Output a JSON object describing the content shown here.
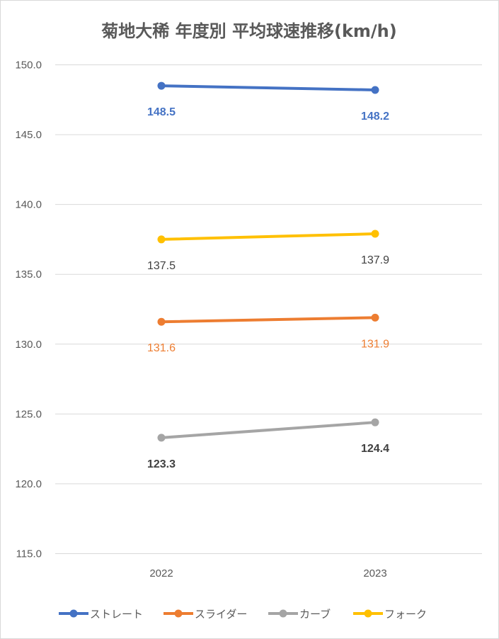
{
  "chart_data": {
    "type": "line",
    "title": "菊地大稀 年度別 平均球速推移(km/h)",
    "categories": [
      "2022",
      "2023"
    ],
    "ylim": [
      115.0,
      150.0
    ],
    "yticks": [
      "150.0",
      "145.0",
      "140.0",
      "135.0",
      "130.0",
      "125.0",
      "120.0",
      "115.0"
    ],
    "grid": true,
    "legend_position": "bottom",
    "series": [
      {
        "name": "ストレート",
        "values": [
          148.5,
          148.2
        ],
        "labels": [
          "148.5",
          "148.2"
        ],
        "color": "#4472C4",
        "label_color": "#4472C4",
        "label_bold": true,
        "label_pos": "below"
      },
      {
        "name": "スライダー",
        "values": [
          131.6,
          131.9
        ],
        "labels": [
          "131.6",
          "131.9"
        ],
        "color": "#ED7D31",
        "label_color": "#ED7D31",
        "label_bold": false,
        "label_pos": "below"
      },
      {
        "name": "カーブ",
        "values": [
          123.3,
          124.4
        ],
        "labels": [
          "123.3",
          "124.4"
        ],
        "color": "#A5A5A5",
        "label_color": "#404040",
        "label_bold": true,
        "label_pos": "below"
      },
      {
        "name": "フォーク",
        "values": [
          137.5,
          137.9
        ],
        "labels": [
          "137.5",
          "137.9"
        ],
        "color": "#FFC000",
        "label_color": "#404040",
        "label_bold": false,
        "label_pos": "below"
      }
    ]
  }
}
